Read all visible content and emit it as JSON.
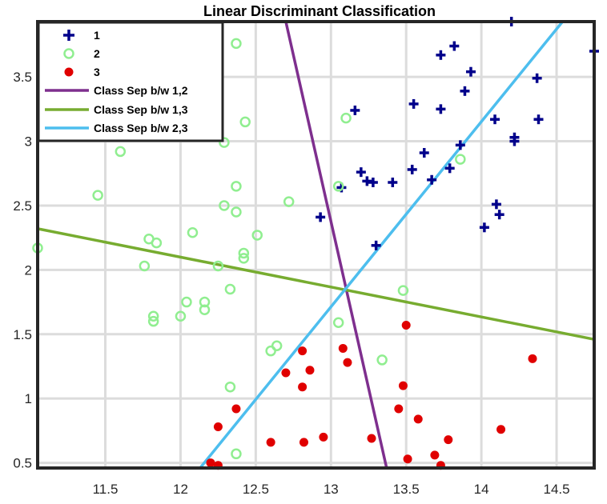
{
  "chart_data": {
    "type": "scatter",
    "title": "Linear Discriminant Classification",
    "xlabel": "",
    "ylabel": "",
    "xlim": [
      11.05,
      14.75
    ],
    "ylim": [
      0.46,
      3.93
    ],
    "xticks": [
      11.5,
      12,
      12.5,
      13,
      13.5,
      14,
      14.5
    ],
    "xtick_labels": [
      "11.5",
      "12",
      "12.5",
      "13",
      "13.5",
      "14",
      "14.5"
    ],
    "yticks": [
      0.5,
      1,
      1.5,
      2,
      2.5,
      3,
      3.5
    ],
    "ytick_labels": [
      "0.5",
      "1",
      "1.5",
      "2",
      "2.5",
      "3",
      "3.5"
    ],
    "grid": true,
    "legend_position": "top-left",
    "series": [
      {
        "name": "1",
        "marker": "plus",
        "color": "#00008b",
        "points": [
          [
            13.16,
            3.24
          ],
          [
            13.55,
            3.29
          ],
          [
            13.73,
            3.25
          ],
          [
            13.89,
            3.39
          ],
          [
            13.93,
            3.54
          ],
          [
            14.09,
            3.17
          ],
          [
            14.22,
            3.0
          ],
          [
            14.22,
            3.03
          ],
          [
            14.38,
            3.17
          ],
          [
            14.37,
            3.49
          ],
          [
            14.75,
            3.7
          ],
          [
            14.2,
            3.93
          ],
          [
            13.82,
            3.74
          ],
          [
            13.73,
            3.67
          ],
          [
            13.86,
            2.97
          ],
          [
            13.62,
            2.91
          ],
          [
            13.54,
            2.78
          ],
          [
            13.79,
            2.79
          ],
          [
            13.67,
            2.7
          ],
          [
            13.2,
            2.76
          ],
          [
            13.24,
            2.69
          ],
          [
            13.28,
            2.68
          ],
          [
            13.41,
            2.68
          ],
          [
            13.07,
            2.64
          ],
          [
            12.93,
            2.41
          ],
          [
            13.3,
            2.19
          ],
          [
            14.1,
            2.51
          ],
          [
            14.12,
            2.43
          ],
          [
            14.02,
            2.33
          ]
        ]
      },
      {
        "name": "2",
        "marker": "circle",
        "color": "#90ee90",
        "points": [
          [
            12.37,
            3.76
          ],
          [
            12.43,
            3.15
          ],
          [
            13.1,
            3.18
          ],
          [
            12.29,
            2.99
          ],
          [
            11.6,
            2.92
          ],
          [
            11.45,
            2.58
          ],
          [
            12.37,
            2.65
          ],
          [
            13.05,
            2.65
          ],
          [
            12.72,
            2.53
          ],
          [
            12.29,
            2.5
          ],
          [
            12.37,
            2.45
          ],
          [
            12.08,
            2.29
          ],
          [
            12.51,
            2.27
          ],
          [
            11.79,
            2.24
          ],
          [
            11.84,
            2.21
          ],
          [
            11.05,
            2.17
          ],
          [
            12.42,
            2.13
          ],
          [
            12.42,
            2.09
          ],
          [
            11.76,
            2.03
          ],
          [
            12.25,
            2.03
          ],
          [
            12.33,
            1.85
          ],
          [
            13.48,
            1.84
          ],
          [
            12.04,
            1.75
          ],
          [
            12.16,
            1.75
          ],
          [
            12.16,
            1.69
          ],
          [
            12.0,
            1.64
          ],
          [
            11.82,
            1.64
          ],
          [
            11.82,
            1.6
          ],
          [
            13.05,
            1.59
          ],
          [
            12.64,
            1.41
          ],
          [
            12.6,
            1.37
          ],
          [
            13.34,
            1.3
          ],
          [
            12.33,
            1.09
          ],
          [
            12.37,
            0.57
          ],
          [
            13.86,
            2.86
          ]
        ]
      },
      {
        "name": "3",
        "marker": "dot",
        "color": "#e00000",
        "points": [
          [
            13.5,
            1.57
          ],
          [
            14.34,
            1.31
          ],
          [
            13.08,
            1.39
          ],
          [
            12.81,
            1.37
          ],
          [
            13.11,
            1.28
          ],
          [
            12.7,
            1.2
          ],
          [
            12.86,
            1.22
          ],
          [
            13.48,
            1.1
          ],
          [
            12.81,
            1.09
          ],
          [
            12.37,
            0.92
          ],
          [
            13.45,
            0.92
          ],
          [
            13.58,
            0.84
          ],
          [
            12.25,
            0.78
          ],
          [
            14.13,
            0.76
          ],
          [
            12.95,
            0.7
          ],
          [
            13.27,
            0.69
          ],
          [
            13.78,
            0.68
          ],
          [
            12.6,
            0.66
          ],
          [
            12.82,
            0.66
          ],
          [
            13.69,
            0.56
          ],
          [
            13.51,
            0.53
          ],
          [
            12.2,
            0.5
          ],
          [
            12.25,
            0.48
          ],
          [
            13.73,
            0.48
          ]
        ]
      },
      {
        "name": "Class Sep b/w 1,2",
        "type": "line",
        "color": "#7e2f8e",
        "points": [
          [
            12.7,
            3.93
          ],
          [
            13.37,
            0.46
          ]
        ]
      },
      {
        "name": "Class Sep b/w 1,3",
        "type": "line",
        "color": "#77ac30",
        "points": [
          [
            11.05,
            2.32
          ],
          [
            14.75,
            1.46
          ]
        ]
      },
      {
        "name": "Class Sep b/w 2,3",
        "type": "line",
        "color": "#4dbeee",
        "points": [
          [
            12.13,
            0.46
          ],
          [
            14.54,
            3.93
          ]
        ]
      }
    ]
  }
}
